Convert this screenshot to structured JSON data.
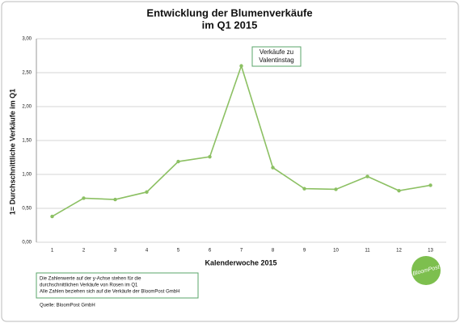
{
  "chart_data": {
    "type": "line",
    "title": [
      "Entwicklung der Blumenverkäufe",
      "im Q1 2015"
    ],
    "x_label": "Kalenderwoche 2015",
    "y_label": "1= Durchschnittliche Verkäufe im Q1",
    "categories": [
      "1",
      "2",
      "3",
      "4",
      "5",
      "6",
      "7",
      "8",
      "9",
      "10",
      "11",
      "12",
      "13"
    ],
    "values": [
      0.38,
      0.65,
      0.63,
      0.74,
      1.19,
      1.26,
      2.6,
      1.1,
      0.79,
      0.78,
      0.97,
      0.76,
      0.84
    ],
    "color": "#8cc063",
    "ylim": [
      0,
      3
    ],
    "yticks": [
      {
        "value": 0,
        "label": "0,00"
      },
      {
        "value": 0.5,
        "label": "0,50"
      },
      {
        "value": 1,
        "label": "1,00"
      },
      {
        "value": 1.5,
        "label": "1,50"
      },
      {
        "value": 2,
        "label": "2,00"
      },
      {
        "value": 2.5,
        "label": "2,50"
      },
      {
        "value": 3,
        "label": "3,00"
      }
    ],
    "grid": true,
    "annotation": [
      "Verkäufe zu",
      "Valentinstag"
    ],
    "note": [
      "Die Zahlenwerte auf der y-Achse stehen für die",
      "durchschnittlichen Verkäufe von Rosen im Q1",
      "Alle Zahlen beziehen sich auf die Verkäufe der BloomPost GmbH"
    ],
    "source": "Quelle: BloomPost GmbH",
    "logo": "BloomPost"
  }
}
